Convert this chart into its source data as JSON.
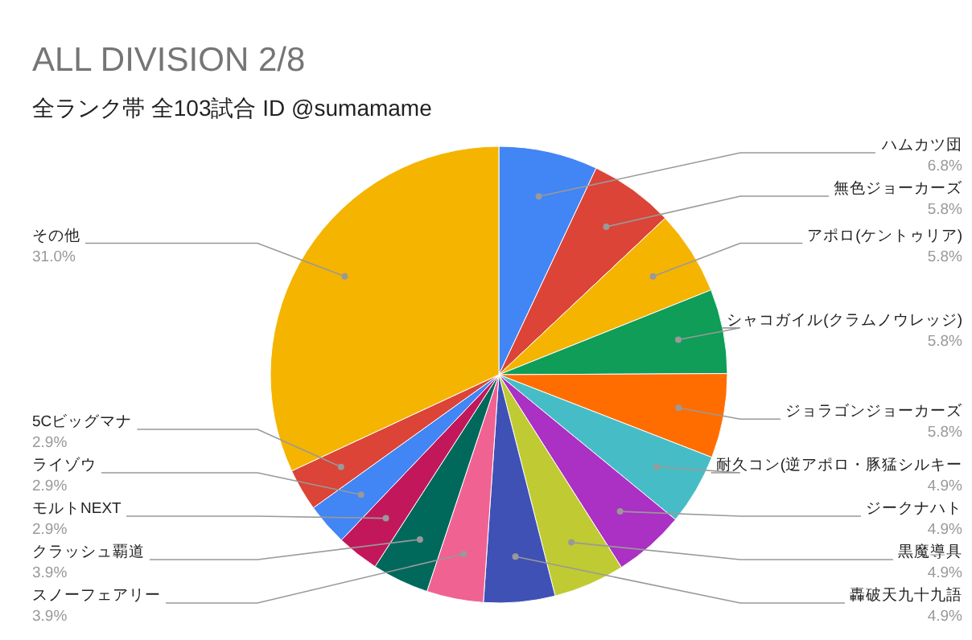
{
  "chart_data": {
    "type": "pie",
    "title": "ALL DIVISION 2/8",
    "subtitle": "全ランク帯 全103試合 ID @sumamame",
    "categories": [
      "ハムカツ団",
      "無色ジョーカーズ",
      "アポロ(ケントゥリア)",
      "シャコガイル(クラムノウレッジ)",
      "ジョラゴンジョーカーズ",
      "耐久コン(逆アポロ・豚猛シルキー",
      "ジークナハト",
      "黒魔導具",
      "轟破天九十九語",
      "スノーフェアリー",
      "クラッシュ覇道",
      "モルトNEXT",
      "ライゾウ",
      "5Cビッグマナ",
      "その他"
    ],
    "values": [
      6.8,
      5.8,
      5.8,
      5.8,
      5.8,
      4.9,
      4.9,
      4.9,
      4.9,
      3.9,
      3.9,
      2.9,
      2.9,
      2.9,
      31.0
    ],
    "value_labels": [
      "6.8%",
      "5.8%",
      "5.8%",
      "5.8%",
      "5.8%",
      "4.9%",
      "4.9%",
      "4.9%",
      "4.9%",
      "3.9%",
      "3.9%",
      "2.9%",
      "2.9%",
      "2.9%",
      "31.0%"
    ],
    "colors": [
      "#4285f4",
      "#db4437",
      "#f4b400",
      "#0f9d58",
      "#ff6d01",
      "#46bdc6",
      "#ab30c4",
      "#c0ca33",
      "#3f51b5",
      "#f06292",
      "#00695c",
      "#c2185b",
      "#4285f4",
      "#db4437",
      "#f4b400"
    ]
  }
}
